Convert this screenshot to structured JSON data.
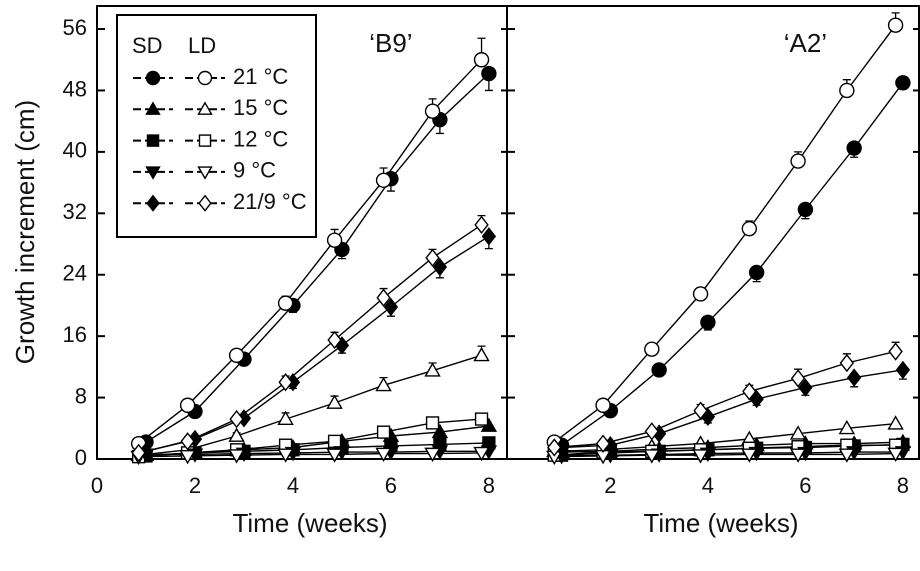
{
  "chart_data": [
    {
      "type": "line",
      "title": "‘B9’",
      "ylabel": "Growth increment (cm)",
      "xlabel": "Time (weeks)",
      "xlim": [
        0,
        8.37
      ],
      "ylim": [
        0,
        59
      ],
      "xticks": [
        0,
        2,
        4,
        6,
        8
      ],
      "yticks": [
        0,
        8,
        16,
        24,
        32,
        40,
        48,
        56
      ],
      "color": "#000000",
      "legend": {
        "columns": [
          "SD",
          "LD"
        ],
        "rows": [
          "21 °C",
          "15 °C",
          "12 °C",
          "9 °C",
          "21/9 °C"
        ]
      },
      "series": [
        {
          "marker": "circle",
          "filled": true,
          "x": [
            1,
            2,
            3,
            4,
            5,
            6,
            7,
            8
          ],
          "values": [
            2.2,
            6.2,
            13,
            20,
            27.3,
            36.5,
            44.2,
            50.2
          ],
          "errors": [
            0.3,
            0.6,
            0.8,
            0.9,
            1.2,
            1.6,
            1.8,
            2.2
          ]
        },
        {
          "marker": "circle",
          "filled": false,
          "x": [
            0.85,
            1.85,
            2.85,
            3.85,
            4.85,
            5.85,
            6.85,
            7.85
          ],
          "values": [
            2,
            7,
            13.5,
            20.3,
            28.5,
            36.3,
            45.3,
            52
          ],
          "errors": [
            0.3,
            0.8,
            0.8,
            0.9,
            1.4,
            1.6,
            1.6,
            2.8
          ]
        },
        {
          "marker": "triangle",
          "filled": true,
          "x": [
            1,
            2,
            3,
            4,
            5,
            6,
            7,
            8
          ],
          "values": [
            0.5,
            0.8,
            1.2,
            1.5,
            2.3,
            3,
            3.5,
            4.3
          ]
        },
        {
          "marker": "triangle",
          "filled": false,
          "x": [
            0.85,
            1.85,
            2.85,
            3.85,
            4.85,
            5.85,
            6.85,
            7.85
          ],
          "values": [
            0.5,
            1.2,
            3,
            5.2,
            7.3,
            9.6,
            11.5,
            13.5
          ],
          "errors": [
            0.2,
            0.3,
            0.4,
            0.8,
            0.9,
            1,
            1,
            1.2
          ]
        },
        {
          "marker": "square",
          "filled": true,
          "x": [
            1,
            2,
            3,
            4,
            5,
            6,
            7,
            8
          ],
          "values": [
            0.4,
            0.8,
            1,
            1.2,
            1.5,
            1.7,
            1.9,
            2.1
          ]
        },
        {
          "marker": "square",
          "filled": false,
          "x": [
            0.85,
            1.85,
            2.85,
            3.85,
            4.85,
            5.85,
            6.85,
            7.85
          ],
          "values": [
            0.3,
            0.8,
            1.2,
            1.8,
            2.3,
            3.5,
            4.7,
            5.2
          ]
        },
        {
          "marker": "invtriangle",
          "filled": true,
          "x": [
            1,
            2,
            3,
            4,
            5,
            6,
            7,
            8
          ],
          "values": [
            0.6,
            0.6,
            0.7,
            0.8,
            0.9,
            0.9,
            1,
            1
          ]
        },
        {
          "marker": "invtriangle",
          "filled": false,
          "x": [
            0.85,
            1.85,
            2.85,
            3.85,
            4.85,
            5.85,
            6.85,
            7.85
          ],
          "values": [
            0.3,
            0.4,
            0.5,
            0.6,
            0.6,
            0.7,
            0.7,
            0.8
          ]
        },
        {
          "marker": "diamond",
          "filled": true,
          "x": [
            1,
            2,
            3,
            4,
            5,
            6,
            7,
            8
          ],
          "values": [
            1,
            2.6,
            5.3,
            10,
            14.8,
            19.8,
            25,
            29
          ],
          "errors": [
            0.2,
            0.3,
            0.4,
            0.8,
            1,
            1.2,
            1.4,
            1.6
          ]
        },
        {
          "marker": "diamond",
          "filled": false,
          "x": [
            0.85,
            1.85,
            2.85,
            3.85,
            4.85,
            5.85,
            6.85,
            7.85
          ],
          "values": [
            0.8,
            2.3,
            5.2,
            10,
            15.5,
            21,
            26.2,
            30.5
          ],
          "errors": [
            0.2,
            0.3,
            0.4,
            0.8,
            1,
            1.2,
            1.1,
            1.2
          ]
        }
      ]
    },
    {
      "type": "line",
      "title": "‘A2’",
      "xlabel": "Time (weeks)",
      "xlim": [
        -0.12,
        8.33
      ],
      "ylim": [
        0,
        59
      ],
      "xticks": [
        2,
        4,
        6,
        8
      ],
      "yticks": [
        0,
        8,
        16,
        24,
        32,
        40,
        48,
        56
      ],
      "color": "#000000",
      "series": [
        {
          "marker": "circle",
          "filled": true,
          "x": [
            1,
            2,
            3,
            4,
            5,
            6,
            7,
            8
          ],
          "values": [
            1.8,
            6.3,
            11.6,
            17.8,
            24.3,
            32.5,
            40.5,
            49
          ],
          "errors": [
            0.3,
            0.8,
            0.6,
            1,
            1.2,
            1.2,
            1.2,
            0.8
          ]
        },
        {
          "marker": "circle",
          "filled": false,
          "x": [
            0.85,
            1.85,
            2.85,
            3.85,
            4.85,
            5.85,
            6.85,
            7.85
          ],
          "values": [
            2.2,
            7,
            14.3,
            21.5,
            30,
            38.8,
            48,
            56.5
          ],
          "errors": [
            0.3,
            0.8,
            0.6,
            0.8,
            1,
            1.2,
            1.4,
            1.6
          ]
        },
        {
          "marker": "triangle",
          "filled": true,
          "x": [
            1,
            2,
            3,
            4,
            5,
            6,
            7,
            8
          ],
          "values": [
            0.9,
            1,
            1.3,
            1.5,
            1.8,
            2,
            2,
            2.2
          ]
        },
        {
          "marker": "triangle",
          "filled": false,
          "x": [
            0.85,
            1.85,
            2.85,
            3.85,
            4.85,
            5.85,
            6.85,
            7.85
          ],
          "values": [
            1,
            1.2,
            1.6,
            2,
            2.6,
            3.3,
            4,
            4.6
          ]
        },
        {
          "marker": "square",
          "filled": true,
          "x": [
            1,
            2,
            3,
            4,
            5,
            6,
            7,
            8
          ],
          "values": [
            0.5,
            0.8,
            1,
            1.2,
            1.4,
            1.5,
            1.7,
            1.9
          ]
        },
        {
          "marker": "square",
          "filled": false,
          "x": [
            0.85,
            1.85,
            2.85,
            3.85,
            4.85,
            5.85,
            6.85,
            7.85
          ],
          "values": [
            0.5,
            0.9,
            1,
            1.2,
            1.4,
            1.6,
            1.8,
            1.8
          ]
        },
        {
          "marker": "invtriangle",
          "filled": true,
          "x": [
            1,
            2,
            3,
            4,
            5,
            6,
            7,
            8
          ],
          "values": [
            0.4,
            0.5,
            0.6,
            0.7,
            0.8,
            0.8,
            0.9,
            0.9
          ]
        },
        {
          "marker": "invtriangle",
          "filled": false,
          "x": [
            0.85,
            1.85,
            2.85,
            3.85,
            4.85,
            5.85,
            6.85,
            7.85
          ],
          "values": [
            0.3,
            0.4,
            0.5,
            0.5,
            0.6,
            0.6,
            0.6,
            0.7
          ]
        },
        {
          "marker": "diamond",
          "filled": true,
          "x": [
            1,
            2,
            3,
            4,
            5,
            6,
            7,
            8
          ],
          "values": [
            1.5,
            1.8,
            3.3,
            5.5,
            7.8,
            9.3,
            10.6,
            11.6
          ],
          "errors": [
            0.2,
            0.3,
            0.3,
            0.8,
            0.8,
            1,
            1.2,
            1.2
          ]
        },
        {
          "marker": "diamond",
          "filled": false,
          "x": [
            0.85,
            1.85,
            2.85,
            3.85,
            4.85,
            5.85,
            6.85,
            7.85
          ],
          "values": [
            1.5,
            2,
            3.6,
            6.3,
            8.8,
            10.5,
            12.5,
            14
          ],
          "errors": [
            0.2,
            0.3,
            0.3,
            0.8,
            0.8,
            1.2,
            1.2,
            1.2
          ]
        }
      ]
    }
  ]
}
